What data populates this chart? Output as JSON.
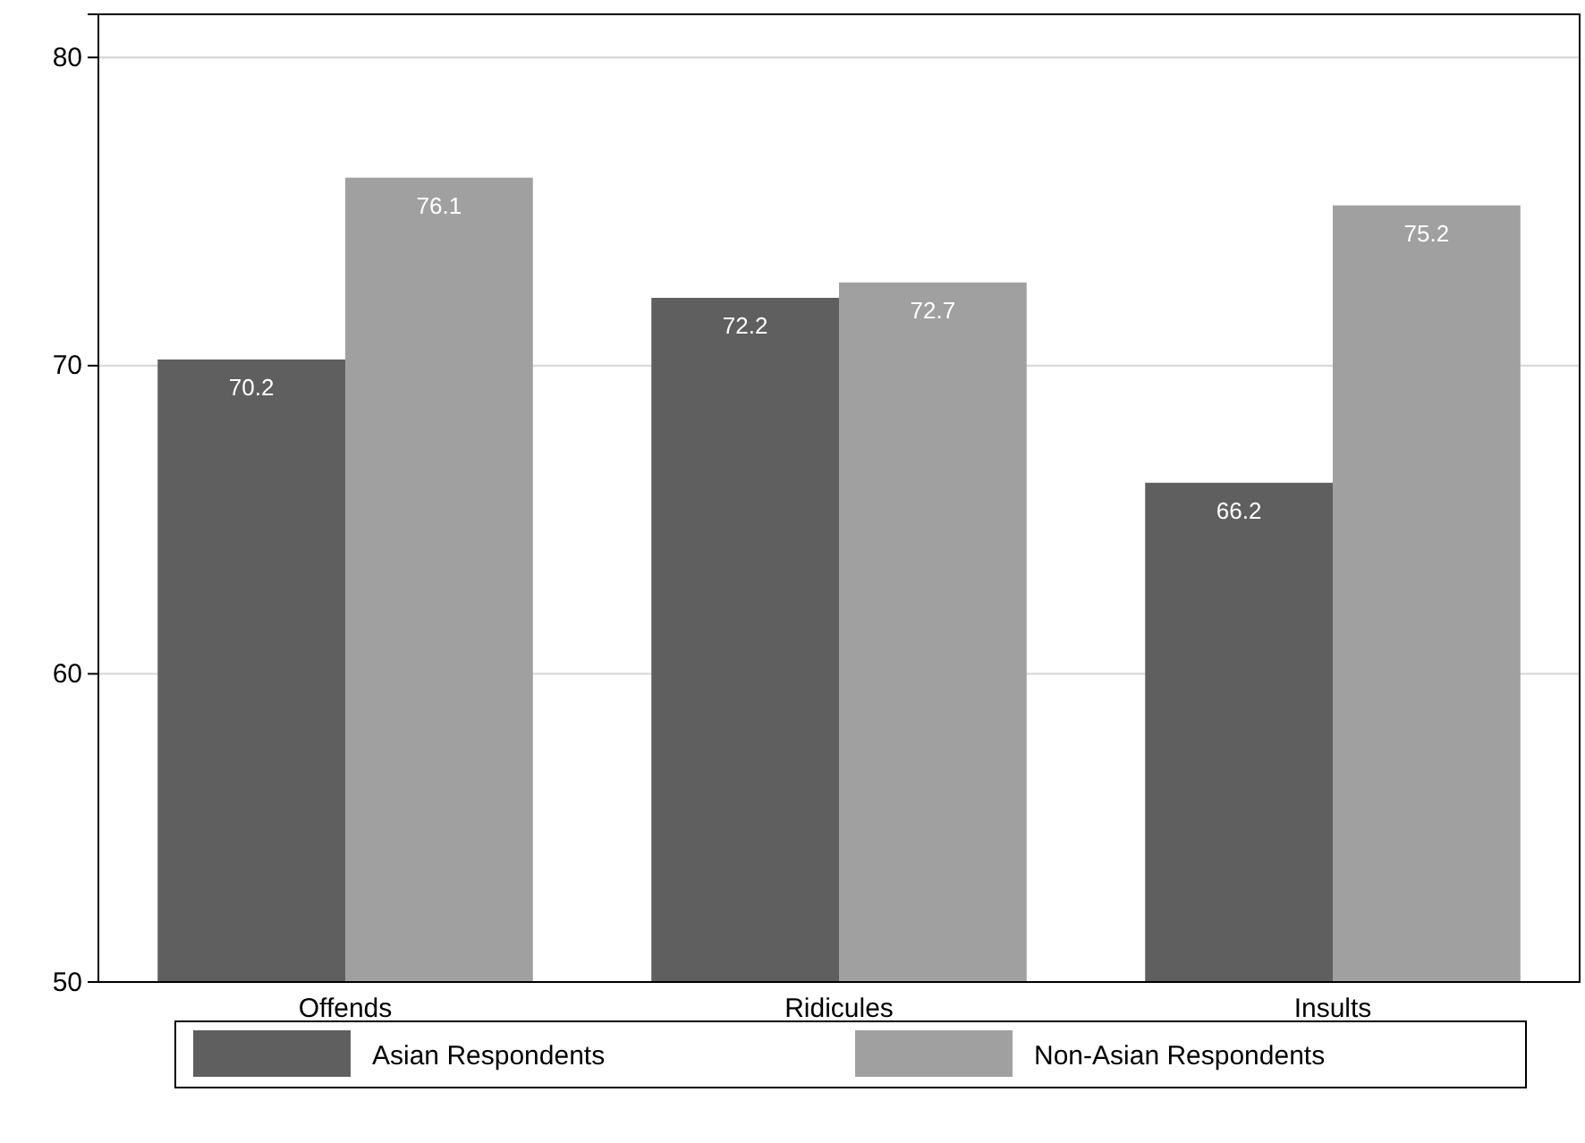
{
  "chart_data": {
    "type": "bar",
    "categories": [
      "Offends",
      "Ridicules",
      "Insults"
    ],
    "series": [
      {
        "name": "Asian Respondents",
        "color": "#5f5f5f",
        "values": [
          70.2,
          72.2,
          66.2
        ]
      },
      {
        "name": "Non-Asian Respondents",
        "color": "#a0a0a0",
        "values": [
          76.1,
          72.7,
          75.2
        ]
      }
    ],
    "ylim": [
      50,
      81.4
    ],
    "yticks": [
      50,
      60,
      70,
      80
    ],
    "grid": "y",
    "legend": "bottom",
    "data_labels": true
  }
}
